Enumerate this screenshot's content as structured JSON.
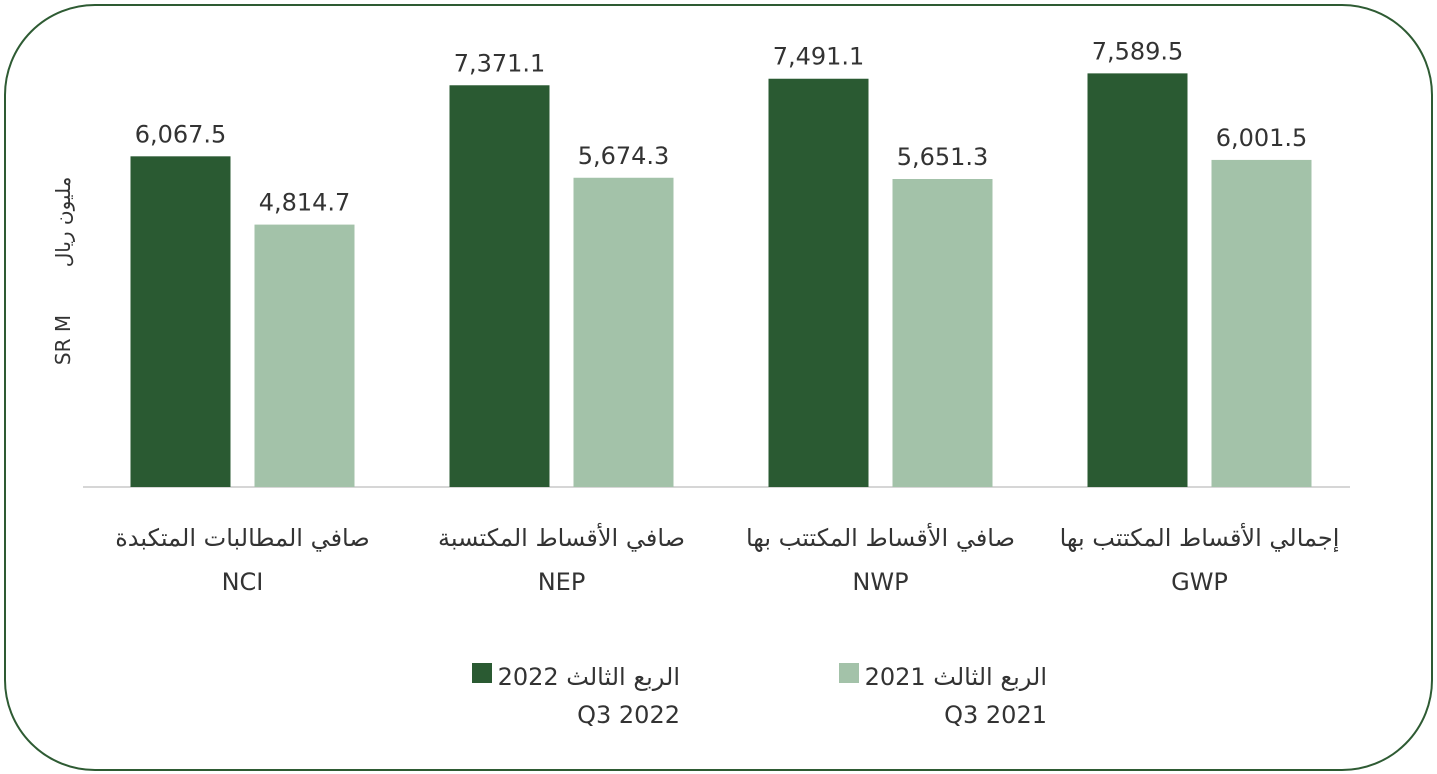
{
  "chart_data": {
    "type": "bar",
    "ylabel_en": "SR M",
    "ylabel_ar": "مليون ريال",
    "categories": [
      "صافي المطالبات المتكبدة",
      "صافي الأقساط المكتسبة",
      "صافي الأقساط المكتتب بها",
      "إجمالي الأقساط المكتتب بها"
    ],
    "category_codes": [
      "NCI",
      "NEP",
      "NWP",
      "GWP"
    ],
    "series": [
      {
        "name": "الربع الثالث 2022",
        "name_en": "Q3 2022",
        "color": "#2a5a32",
        "values": [
          6067.5,
          7371.1,
          7491.1,
          7589.5
        ],
        "value_labels": [
          "6,067.5",
          "7,371.1",
          "7,491.1",
          "7,589.5"
        ]
      },
      {
        "name": "الربع الثالث 2021",
        "name_en": "Q3 2021",
        "color": "#a3c2a9",
        "values": [
          4814.7,
          5674.3,
          5651.3,
          6001.5
        ],
        "value_labels": [
          "4,814.7",
          "5,674.3",
          "5,651.3",
          "6,001.5"
        ]
      }
    ],
    "ylim": [
      0,
      8000
    ]
  }
}
